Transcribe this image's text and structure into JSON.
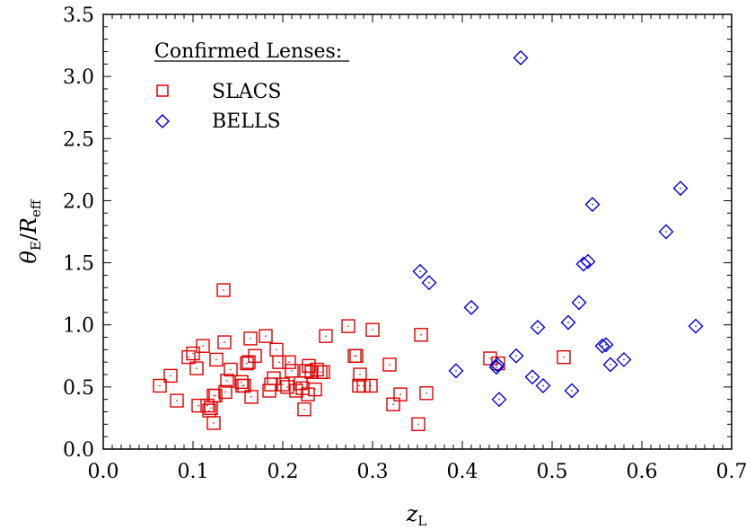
{
  "chart_data": {
    "type": "scatter",
    "title": "",
    "xlabel": "z_L",
    "ylabel": "θ_E/R_eff",
    "xlim": [
      0.0,
      0.7
    ],
    "ylim": [
      0.0,
      3.5
    ],
    "x_ticks": [
      "0.0",
      "0.1",
      "0.2",
      "0.3",
      "0.4",
      "0.5",
      "0.6",
      "0.7"
    ],
    "y_ticks": [
      "0.0",
      "0.5",
      "1.0",
      "1.5",
      "2.0",
      "2.5",
      "3.0",
      "3.5"
    ],
    "legend": {
      "title": "Confirmed Lenses:",
      "placement": "top-left"
    },
    "grid": false,
    "series": [
      {
        "name": "SLACS",
        "marker": "square",
        "color": "#dd0000",
        "points": [
          [
            0.063,
            0.51
          ],
          [
            0.075,
            0.59
          ],
          [
            0.082,
            0.39
          ],
          [
            0.095,
            0.74
          ],
          [
            0.1,
            0.77
          ],
          [
            0.104,
            0.65
          ],
          [
            0.106,
            0.35
          ],
          [
            0.111,
            0.83
          ],
          [
            0.116,
            0.35
          ],
          [
            0.118,
            0.31
          ],
          [
            0.12,
            0.33
          ],
          [
            0.123,
            0.43
          ],
          [
            0.123,
            0.21
          ],
          [
            0.125,
            0.43
          ],
          [
            0.126,
            0.72
          ],
          [
            0.134,
            1.28
          ],
          [
            0.135,
            0.86
          ],
          [
            0.136,
            0.46
          ],
          [
            0.138,
            0.55
          ],
          [
            0.142,
            0.64
          ],
          [
            0.154,
            0.54
          ],
          [
            0.155,
            0.51
          ],
          [
            0.157,
            0.51
          ],
          [
            0.16,
            0.69
          ],
          [
            0.162,
            0.7
          ],
          [
            0.164,
            0.89
          ],
          [
            0.165,
            0.42
          ],
          [
            0.169,
            0.75
          ],
          [
            0.181,
            0.91
          ],
          [
            0.185,
            0.47
          ],
          [
            0.187,
            0.52
          ],
          [
            0.19,
            0.57
          ],
          [
            0.193,
            0.8
          ],
          [
            0.196,
            0.7
          ],
          [
            0.2,
            0.52
          ],
          [
            0.205,
            0.5
          ],
          [
            0.207,
            0.7
          ],
          [
            0.21,
            0.63
          ],
          [
            0.215,
            0.47
          ],
          [
            0.22,
            0.53
          ],
          [
            0.222,
            0.49
          ],
          [
            0.224,
            0.32
          ],
          [
            0.226,
            0.63
          ],
          [
            0.228,
            0.44
          ],
          [
            0.229,
            0.67
          ],
          [
            0.232,
            0.62
          ],
          [
            0.236,
            0.48
          ],
          [
            0.238,
            0.64
          ],
          [
            0.242,
            0.62
          ],
          [
            0.245,
            0.62
          ],
          [
            0.248,
            0.91
          ],
          [
            0.273,
            0.99
          ],
          [
            0.28,
            0.75
          ],
          [
            0.282,
            0.75
          ],
          [
            0.285,
            0.51
          ],
          [
            0.286,
            0.6
          ],
          [
            0.29,
            0.51
          ],
          [
            0.298,
            0.51
          ],
          [
            0.3,
            0.96
          ],
          [
            0.319,
            0.68
          ],
          [
            0.323,
            0.36
          ],
          [
            0.331,
            0.44
          ],
          [
            0.351,
            0.2
          ],
          [
            0.354,
            0.92
          ],
          [
            0.36,
            0.45
          ],
          [
            0.431,
            0.73
          ],
          [
            0.44,
            0.69
          ],
          [
            0.513,
            0.74
          ]
        ]
      },
      {
        "name": "BELLS",
        "marker": "diamond",
        "color": "#0000dd",
        "points": [
          [
            0.353,
            1.43
          ],
          [
            0.363,
            1.34
          ],
          [
            0.393,
            0.63
          ],
          [
            0.41,
            1.14
          ],
          [
            0.438,
            0.66
          ],
          [
            0.439,
            0.68
          ],
          [
            0.441,
            0.4
          ],
          [
            0.46,
            0.75
          ],
          [
            0.465,
            3.15
          ],
          [
            0.478,
            0.58
          ],
          [
            0.484,
            0.98
          ],
          [
            0.49,
            0.51
          ],
          [
            0.518,
            1.02
          ],
          [
            0.522,
            0.47
          ],
          [
            0.53,
            1.18
          ],
          [
            0.535,
            1.49
          ],
          [
            0.54,
            1.51
          ],
          [
            0.545,
            1.97
          ],
          [
            0.556,
            0.83
          ],
          [
            0.56,
            0.84
          ],
          [
            0.565,
            0.68
          ],
          [
            0.58,
            0.72
          ],
          [
            0.627,
            1.75
          ],
          [
            0.643,
            2.1
          ],
          [
            0.66,
            0.99
          ]
        ]
      }
    ]
  }
}
